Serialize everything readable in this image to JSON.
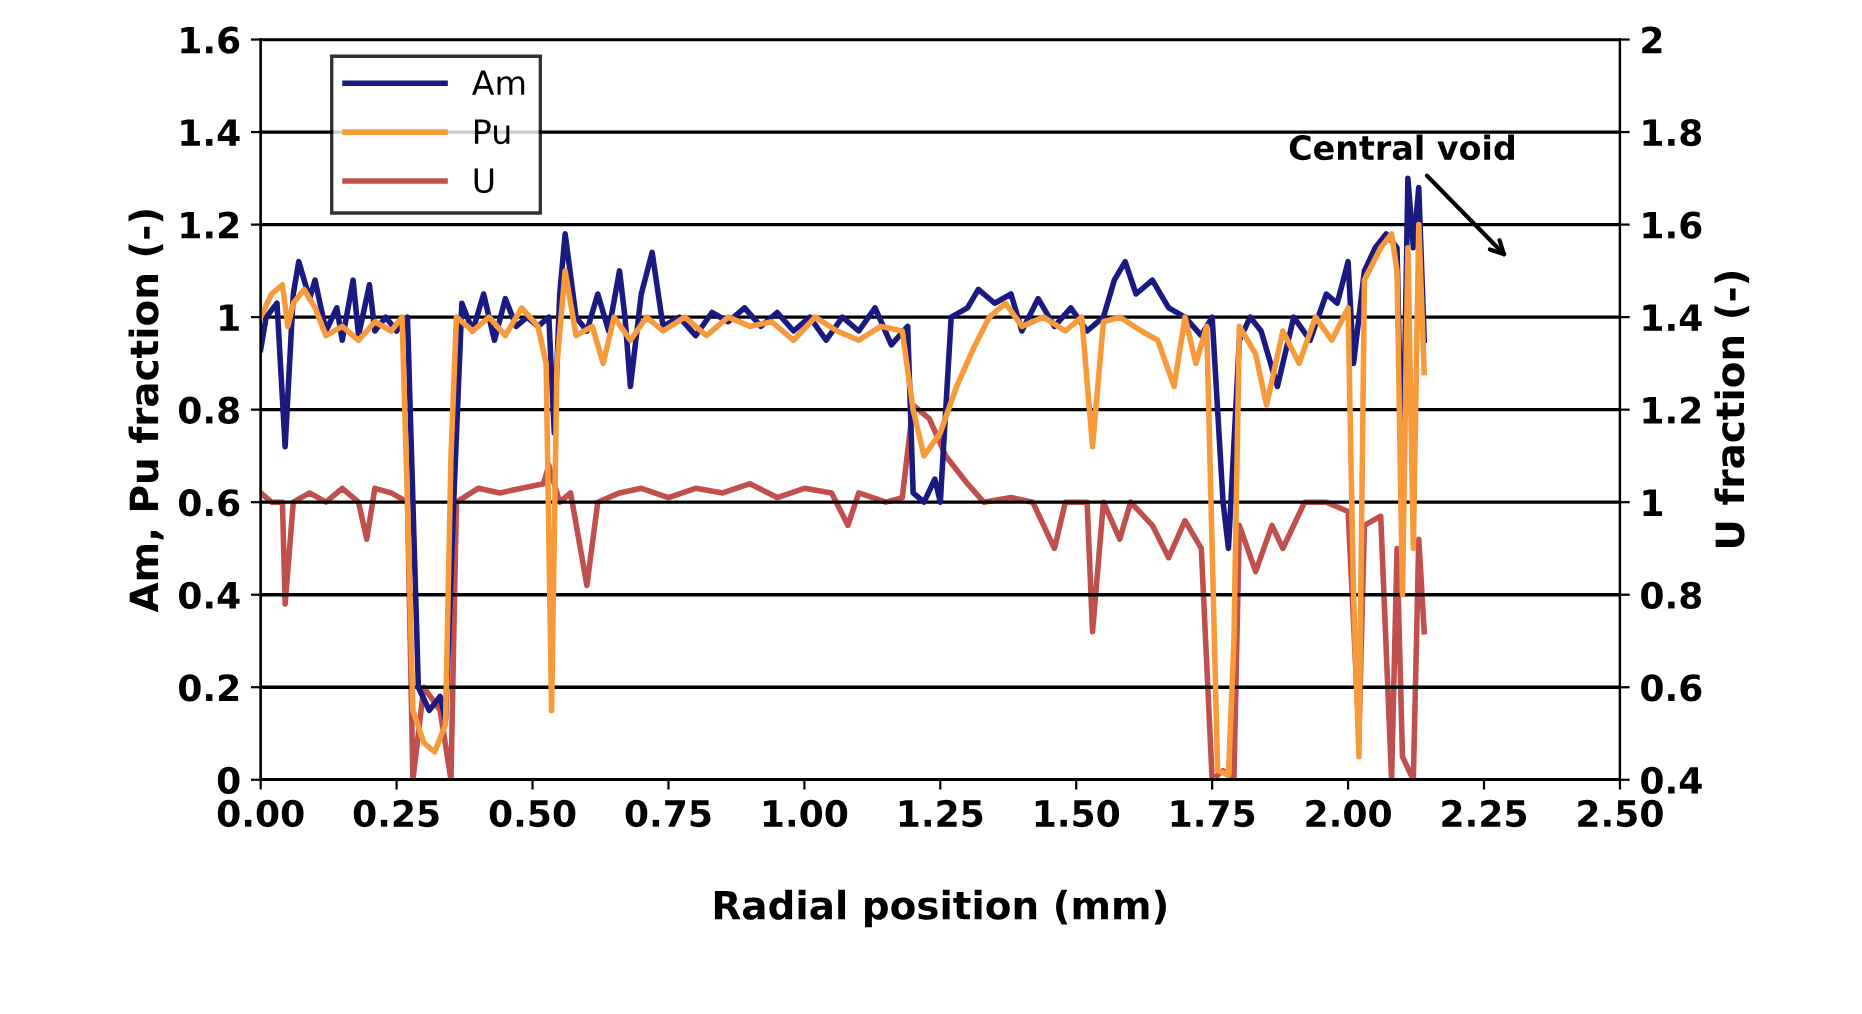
{
  "chart_data": {
    "type": "line",
    "xlabel": "Radial position (mm)",
    "ylabel": "Am, Pu fraction (-)",
    "y2label": "U fraction (-)",
    "xlim": [
      0,
      2.5
    ],
    "xticks": [
      {
        "value": 0,
        "label": "0.00"
      },
      {
        "value": 0.25,
        "label": "0.25"
      },
      {
        "value": 0.5,
        "label": "0.50"
      },
      {
        "value": 0.75,
        "label": "0.75"
      },
      {
        "value": 1,
        "label": "1.00"
      },
      {
        "value": 1.25,
        "label": "1.25"
      },
      {
        "value": 1.5,
        "label": "1.50"
      },
      {
        "value": 1.75,
        "label": "1.75"
      },
      {
        "value": 2,
        "label": "2.00"
      },
      {
        "value": 2.25,
        "label": "2.25"
      },
      {
        "value": 2.5,
        "label": "2.50"
      }
    ],
    "ylim": [
      0,
      1.6
    ],
    "yticks": [
      0,
      0.2,
      0.4,
      0.6,
      0.8,
      1,
      1.2,
      1.4,
      1.6
    ],
    "y2lim": [
      0.4,
      2
    ],
    "y2ticks": [
      0.4,
      0.6,
      0.8,
      1,
      1.2,
      1.4,
      1.6,
      1.8,
      2
    ],
    "grid": "y",
    "legend": "top left",
    "marker": "none",
    "line_style": "solid",
    "annotations": [
      "Central void"
    ],
    "series": [
      {
        "name": "Am",
        "color": "#1a1a80",
        "x": [
          0.0,
          0.01,
          0.03,
          0.045,
          0.06,
          0.07,
          0.09,
          0.1,
          0.12,
          0.14,
          0.15,
          0.17,
          0.18,
          0.2,
          0.21,
          0.23,
          0.25,
          0.27,
          0.28,
          0.29,
          0.31,
          0.33,
          0.34,
          0.355,
          0.37,
          0.39,
          0.41,
          0.43,
          0.45,
          0.47,
          0.49,
          0.51,
          0.53,
          0.54,
          0.55,
          0.56,
          0.58,
          0.6,
          0.62,
          0.64,
          0.66,
          0.67,
          0.68,
          0.7,
          0.72,
          0.74,
          0.77,
          0.8,
          0.83,
          0.86,
          0.89,
          0.92,
          0.95,
          0.98,
          1.01,
          1.04,
          1.07,
          1.1,
          1.13,
          1.16,
          1.19,
          1.2,
          1.22,
          1.24,
          1.25,
          1.27,
          1.3,
          1.32,
          1.35,
          1.38,
          1.4,
          1.43,
          1.46,
          1.49,
          1.52,
          1.55,
          1.57,
          1.59,
          1.61,
          1.64,
          1.67,
          1.7,
          1.73,
          1.75,
          1.77,
          1.78,
          1.8,
          1.82,
          1.84,
          1.87,
          1.9,
          1.93,
          1.96,
          1.98,
          2.0,
          2.01,
          2.03,
          2.05,
          2.07,
          2.09,
          2.1,
          2.11,
          2.12,
          2.13,
          2.14
        ],
        "values": [
          0.93,
          1.0,
          1.03,
          0.72,
          1.05,
          1.12,
          1.04,
          1.08,
          0.97,
          1.02,
          0.95,
          1.08,
          0.96,
          1.07,
          0.97,
          1.0,
          0.97,
          1.0,
          0.6,
          0.2,
          0.15,
          0.18,
          0.13,
          0.6,
          1.03,
          0.97,
          1.05,
          0.95,
          1.04,
          0.98,
          1.0,
          0.98,
          1.0,
          0.75,
          1.05,
          1.18,
          1.0,
          0.97,
          1.05,
          0.97,
          1.1,
          1.0,
          0.85,
          1.05,
          1.14,
          0.98,
          1.0,
          0.96,
          1.01,
          0.99,
          1.02,
          0.98,
          1.01,
          0.97,
          1.0,
          0.95,
          1.0,
          0.97,
          1.02,
          0.94,
          0.98,
          0.62,
          0.6,
          0.65,
          0.6,
          1.0,
          1.02,
          1.06,
          1.03,
          1.05,
          0.97,
          1.04,
          0.98,
          1.02,
          0.97,
          1.0,
          1.08,
          1.12,
          1.05,
          1.08,
          1.02,
          1.0,
          0.96,
          1.0,
          0.6,
          0.5,
          0.95,
          1.0,
          0.97,
          0.85,
          1.0,
          0.95,
          1.05,
          1.03,
          1.12,
          0.9,
          1.1,
          1.15,
          1.18,
          1.15,
          0.6,
          1.3,
          1.15,
          1.28,
          0.95
        ]
      },
      {
        "name": "Pu",
        "color": "#f79a3c",
        "x": [
          0.0,
          0.02,
          0.04,
          0.05,
          0.06,
          0.08,
          0.1,
          0.12,
          0.15,
          0.18,
          0.21,
          0.24,
          0.26,
          0.27,
          0.28,
          0.3,
          0.32,
          0.34,
          0.35,
          0.36,
          0.39,
          0.42,
          0.45,
          0.48,
          0.51,
          0.525,
          0.535,
          0.545,
          0.56,
          0.58,
          0.61,
          0.63,
          0.65,
          0.68,
          0.71,
          0.74,
          0.78,
          0.82,
          0.86,
          0.9,
          0.94,
          0.98,
          1.02,
          1.06,
          1.1,
          1.14,
          1.18,
          1.2,
          1.22,
          1.25,
          1.28,
          1.31,
          1.34,
          1.37,
          1.4,
          1.44,
          1.48,
          1.51,
          1.53,
          1.55,
          1.58,
          1.62,
          1.65,
          1.68,
          1.7,
          1.72,
          1.74,
          1.75,
          1.76,
          1.78,
          1.79,
          1.8,
          1.83,
          1.85,
          1.88,
          1.91,
          1.94,
          1.97,
          2.0,
          2.01,
          2.02,
          2.03,
          2.06,
          2.08,
          2.09,
          2.1,
          2.11,
          2.12,
          2.13,
          2.14
        ],
        "values": [
          1.0,
          1.05,
          1.07,
          0.98,
          1.03,
          1.06,
          1.02,
          0.96,
          0.98,
          0.95,
          0.99,
          0.97,
          1.0,
          0.6,
          0.15,
          0.08,
          0.06,
          0.12,
          0.7,
          1.0,
          0.97,
          1.0,
          0.96,
          1.02,
          0.98,
          0.9,
          0.15,
          0.9,
          1.1,
          0.96,
          0.98,
          0.9,
          1.0,
          0.95,
          1.0,
          0.97,
          1.0,
          0.96,
          1.0,
          0.98,
          0.99,
          0.95,
          1.0,
          0.97,
          0.95,
          0.98,
          0.97,
          0.8,
          0.7,
          0.75,
          0.85,
          0.93,
          1.0,
          1.03,
          0.98,
          1.0,
          0.97,
          1.0,
          0.72,
          0.99,
          1.0,
          0.97,
          0.95,
          0.85,
          1.0,
          0.9,
          0.98,
          0.5,
          0.02,
          0.01,
          0.3,
          0.98,
          0.92,
          0.81,
          0.97,
          0.9,
          1.0,
          0.95,
          1.02,
          0.4,
          0.05,
          1.08,
          1.15,
          1.18,
          1.1,
          0.4,
          1.15,
          0.5,
          1.2,
          0.88
        ]
      },
      {
        "name": "U",
        "color": "#c0504d",
        "axis": "y2",
        "x": [
          0.0,
          0.02,
          0.04,
          0.045,
          0.06,
          0.09,
          0.12,
          0.15,
          0.18,
          0.195,
          0.21,
          0.24,
          0.27,
          0.28,
          0.3,
          0.33,
          0.35,
          0.36,
          0.4,
          0.44,
          0.48,
          0.52,
          0.53,
          0.55,
          0.57,
          0.6,
          0.62,
          0.66,
          0.7,
          0.75,
          0.8,
          0.85,
          0.9,
          0.95,
          1.0,
          1.05,
          1.08,
          1.1,
          1.15,
          1.18,
          1.2,
          1.23,
          1.26,
          1.3,
          1.33,
          1.38,
          1.42,
          1.46,
          1.48,
          1.52,
          1.53,
          1.55,
          1.58,
          1.6,
          1.64,
          1.67,
          1.7,
          1.73,
          1.75,
          1.77,
          1.79,
          1.8,
          1.83,
          1.86,
          1.88,
          1.92,
          1.96,
          2.0,
          2.02,
          2.03,
          2.06,
          2.08,
          2.09,
          2.1,
          2.12,
          2.13,
          2.14
        ],
        "values": [
          1.02,
          1.0,
          1.0,
          0.78,
          1.0,
          1.02,
          1.0,
          1.03,
          1.0,
          0.92,
          1.03,
          1.02,
          1.0,
          0.4,
          0.6,
          0.55,
          0.4,
          1.0,
          1.03,
          1.02,
          1.03,
          1.04,
          1.08,
          1.0,
          1.02,
          0.82,
          1.0,
          1.02,
          1.03,
          1.01,
          1.03,
          1.02,
          1.04,
          1.01,
          1.03,
          1.02,
          0.95,
          1.02,
          1.0,
          1.01,
          1.21,
          1.18,
          1.1,
          1.04,
          1.0,
          1.01,
          1.0,
          0.9,
          1.0,
          1.0,
          0.72,
          1.0,
          0.92,
          1.0,
          0.95,
          0.88,
          0.96,
          0.9,
          0.4,
          0.42,
          0.4,
          0.95,
          0.85,
          0.95,
          0.9,
          1.0,
          1.0,
          0.98,
          0.5,
          0.95,
          0.97,
          0.4,
          0.9,
          0.45,
          0.4,
          0.92,
          0.72
        ]
      }
    ]
  }
}
